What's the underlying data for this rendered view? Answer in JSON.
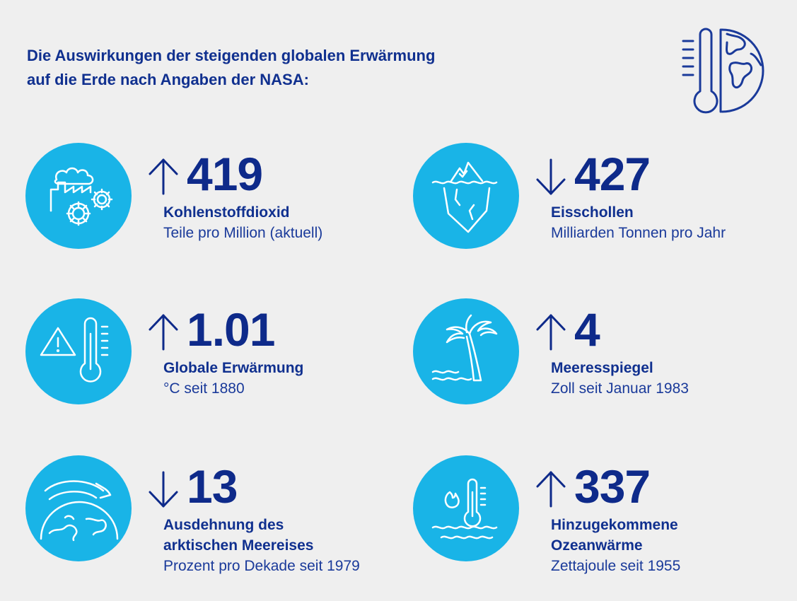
{
  "title": {
    "line1": "Die Auswirkungen der steigenden globalen Erwärmung",
    "line2": "auf die Erde nach Angaben der NASA:"
  },
  "colors": {
    "background": "#efefef",
    "circle": "#19b4e7",
    "text": "#0e2a8a"
  },
  "stats": [
    {
      "icon": "factory-gears-icon",
      "direction": "up",
      "value": "419",
      "label_line1": "Kohlenstoffdioxid",
      "label_line2": "",
      "sub": "Teile pro Million (aktuell)"
    },
    {
      "icon": "iceberg-icon",
      "direction": "down",
      "value": "427",
      "label_line1": "Eisschollen",
      "label_line2": "",
      "sub": "Milliarden Tonnen pro Jahr"
    },
    {
      "icon": "warning-thermometer-icon",
      "direction": "up",
      "value": "1.01",
      "label_line1": "Globale Erwärmung",
      "label_line2": "",
      "sub": "°C seit 1880"
    },
    {
      "icon": "palm-tree-waves-icon",
      "direction": "up",
      "value": "4",
      "label_line1": "Meeresspiegel",
      "label_line2": "",
      "sub": "Zoll seit Januar 1983"
    },
    {
      "icon": "globe-arrow-icon",
      "direction": "down",
      "value": "13",
      "label_line1": "Ausdehnung des",
      "label_line2": "arktischen Meereises",
      "sub": "Prozent pro Dekade seit 1979"
    },
    {
      "icon": "ocean-heat-icon",
      "direction": "up",
      "value": "337",
      "label_line1": "Hinzugekommene",
      "label_line2": "Ozeanwärme",
      "sub": "Zettajoule seit 1955"
    }
  ]
}
